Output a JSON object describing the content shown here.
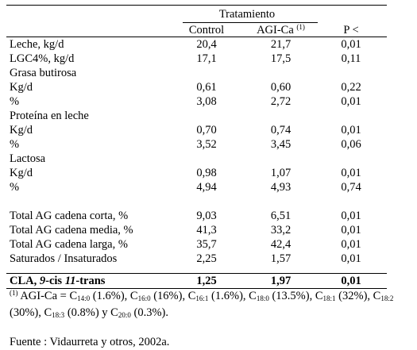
{
  "header": {
    "group": "Tratamiento",
    "col1": "Control",
    "col2": "AGI-Ca",
    "col2_note": "(1)",
    "col3": "P <"
  },
  "rows": [
    {
      "label": "Leche, kg/d",
      "c1": "20,4",
      "c2": "21,7",
      "c3": "0,01"
    },
    {
      "label": "LGC4%, kg/d",
      "c1": "17,1",
      "c2": "17,5",
      "c3": "0,11"
    },
    {
      "label": "Grasa butirosa",
      "c1": "",
      "c2": "",
      "c3": ""
    },
    {
      "label": "Kg/d",
      "c1": "0,61",
      "c2": "0,60",
      "c3": "0,22"
    },
    {
      "label": "%",
      "c1": "3,08",
      "c2": "2,72",
      "c3": "0,01"
    },
    {
      "label": "Proteína en leche",
      "c1": "",
      "c2": "",
      "c3": ""
    },
    {
      "label": "Kg/d",
      "c1": "0,70",
      "c2": "0,74",
      "c3": "0,01"
    },
    {
      "label": "%",
      "c1": "3,52",
      "c2": "3,45",
      "c3": "0,06"
    },
    {
      "label": "Lactosa",
      "c1": "",
      "c2": "",
      "c3": ""
    },
    {
      "label": "Kg/d",
      "c1": "0,98",
      "c2": "1,07",
      "c3": "0,01"
    },
    {
      "label": "%",
      "c1": "4,94",
      "c2": "4,93",
      "c3": "0,74"
    },
    {
      "label": "Total AG cadena corta, %",
      "c1": "9,03",
      "c2": "6,51",
      "c3": "0,01"
    },
    {
      "label": "Total AG cadena media, %",
      "c1": "41,3",
      "c2": "33,2",
      "c3": "0,01"
    },
    {
      "label": "Total AG cadena larga, %",
      "c1": "35,7",
      "c2": "42,4",
      "c3": "0,01"
    },
    {
      "label": "Saturados / Insaturados",
      "c1": "2,25",
      "c2": "1,57",
      "c3": "0,01"
    }
  ],
  "cla_row": {
    "label_a": "CLA, ",
    "label_b": "9",
    "label_c": "-cis ",
    "label_d": "11",
    "label_e": "-trans",
    "c1": "1,25",
    "c2": "1,97",
    "c3": "0,01"
  },
  "footnote": {
    "mark": "(1)",
    "text_a": " AGI-Ca = C",
    "s1": "14:0",
    "t1": " (1.6%), C",
    "s2": "16:0",
    "t2": " (16%), C",
    "s3": "16:1",
    "t3": " (1.6%), C",
    "s4": "18:0",
    "t4": " (13.5%), C",
    "s5": "18:1",
    "t5": " (32%), C",
    "s6": "18:2",
    "t6": " (30%), C",
    "s7": "18:3",
    "t7": " (0.8%) y C",
    "s8": "20:0",
    "t8": " (0.3%)."
  },
  "source": "Fuente : Vidaurreta y otros, 2002a."
}
